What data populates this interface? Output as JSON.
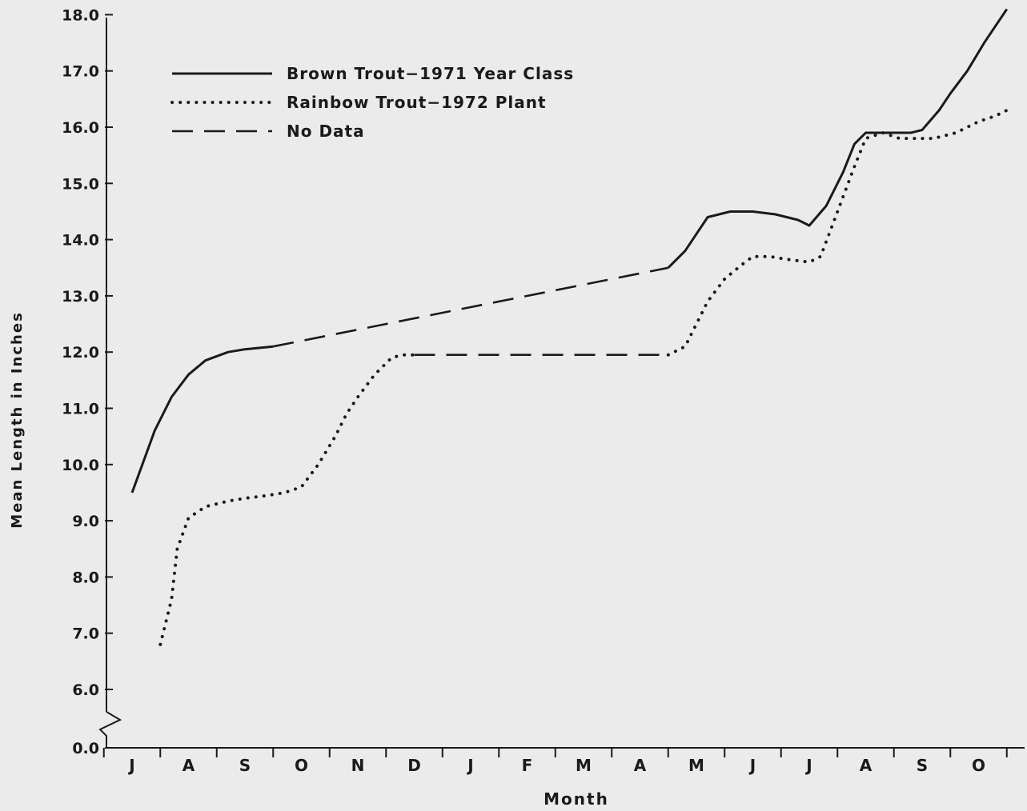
{
  "chart_data": {
    "type": "line",
    "title": "",
    "xlabel": "Month",
    "ylabel": "Mean Length in Inches",
    "x_tick_labels": [
      "J",
      "A",
      "S",
      "O",
      "N",
      "D",
      "J",
      "F",
      "M",
      "A",
      "M",
      "J",
      "J",
      "A",
      "S",
      "O"
    ],
    "y_tick_labels": [
      "0.0",
      "6.0",
      "7.0",
      "8.0",
      "9.0",
      "10.0",
      "11.0",
      "12.0",
      "13.0",
      "14.0",
      "15.0",
      "16.0",
      "17.0",
      "18.0"
    ],
    "y_ticks": [
      0,
      6,
      7,
      8,
      9,
      10,
      11,
      12,
      13,
      14,
      15,
      16,
      17,
      18
    ],
    "ylim": [
      0,
      18
    ],
    "y_axis_break": "between 0.0 and 6.0",
    "x_units": "months from first J (July 1971 to October 1972)",
    "grid": false,
    "legend_position": "top-left",
    "series": [
      {
        "name": "Brown Trout−1971 Year Class",
        "style": "solid",
        "segments": [
          {
            "x": [
              0.0,
              0.4,
              0.7,
              1.0,
              1.3,
              1.7,
              2.0,
              2.5
            ],
            "y": [
              9.5,
              10.6,
              11.2,
              11.6,
              11.85,
              12.0,
              12.05,
              12.1
            ]
          },
          {
            "x": [
              9.5,
              9.8,
              10.0,
              10.2,
              10.6,
              11.0,
              11.4,
              11.8,
              12.0,
              12.3,
              12.6,
              12.8,
              13.0,
              13.3,
              13.6,
              13.8,
              14.0,
              14.3,
              14.5,
              14.8,
              15.1,
              15.5
            ],
            "y": [
              13.5,
              13.8,
              14.1,
              14.4,
              14.5,
              14.5,
              14.45,
              14.35,
              14.25,
              14.6,
              15.2,
              15.7,
              15.9,
              15.9,
              15.9,
              15.9,
              15.95,
              16.3,
              16.6,
              17.0,
              17.5,
              18.1
            ]
          }
        ]
      },
      {
        "name": "Rainbow Trout−1972 Plant",
        "style": "dotted",
        "segments": [
          {
            "x": [
              0.5,
              0.7,
              0.8,
              1.0,
              1.3,
              1.7,
              2.0,
              2.4,
              2.7,
              3.0,
              3.3,
              3.6,
              3.8,
              4.0,
              4.3,
              4.6,
              4.8,
              5.0
            ],
            "y": [
              6.8,
              7.6,
              8.5,
              9.05,
              9.25,
              9.35,
              9.4,
              9.45,
              9.5,
              9.6,
              10.0,
              10.5,
              10.9,
              11.2,
              11.6,
              11.9,
              11.95,
              11.95
            ]
          },
          {
            "x": [
              9.5,
              9.8,
              10.0,
              10.2,
              10.5,
              10.8,
              11.0,
              11.3,
              11.6,
              12.0,
              12.2,
              12.5,
              12.8,
              13.0,
              13.3,
              13.6,
              14.0,
              14.2,
              14.6,
              15.0,
              15.3,
              15.5
            ],
            "y": [
              11.95,
              12.1,
              12.5,
              12.9,
              13.3,
              13.55,
              13.7,
              13.7,
              13.65,
              13.6,
              13.7,
              14.5,
              15.3,
              15.8,
              15.9,
              15.8,
              15.8,
              15.8,
              15.9,
              16.1,
              16.2,
              16.3
            ]
          }
        ]
      },
      {
        "name": "No Data",
        "style": "dashed",
        "segments": [
          {
            "x": [
              2.5,
              9.5
            ],
            "y": [
              12.1,
              13.5
            ]
          },
          {
            "x": [
              5.0,
              9.5
            ],
            "y": [
              11.95,
              11.95
            ]
          }
        ]
      }
    ]
  }
}
